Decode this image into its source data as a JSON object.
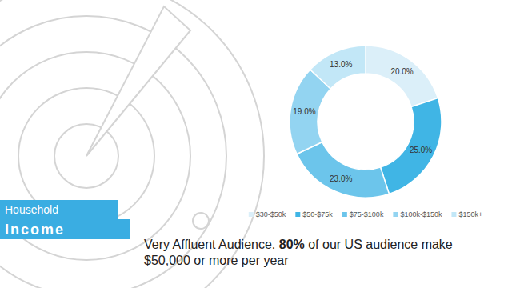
{
  "chart_data": {
    "type": "donut",
    "title": "Household",
    "subtitle": "Income",
    "categories": [
      "$30-$50k",
      "$50-$75k",
      "$75-$100k",
      "$100k-$150k",
      "$150k+"
    ],
    "values": [
      20,
      25,
      23,
      19,
      13
    ],
    "value_labels": [
      "20.0%",
      "25.0%",
      "23.0%",
      "19.0%",
      "13.0%"
    ],
    "colors": [
      "#dbeff9",
      "#40b5e5",
      "#6cc5eb",
      "#93d4f1",
      "#c2e7f7"
    ],
    "data_labels": true,
    "legend": "bottom",
    "annotation": [
      "Very Affluent Audience.",
      "80%",
      "of our US audience make $50,000 or more per year"
    ]
  }
}
